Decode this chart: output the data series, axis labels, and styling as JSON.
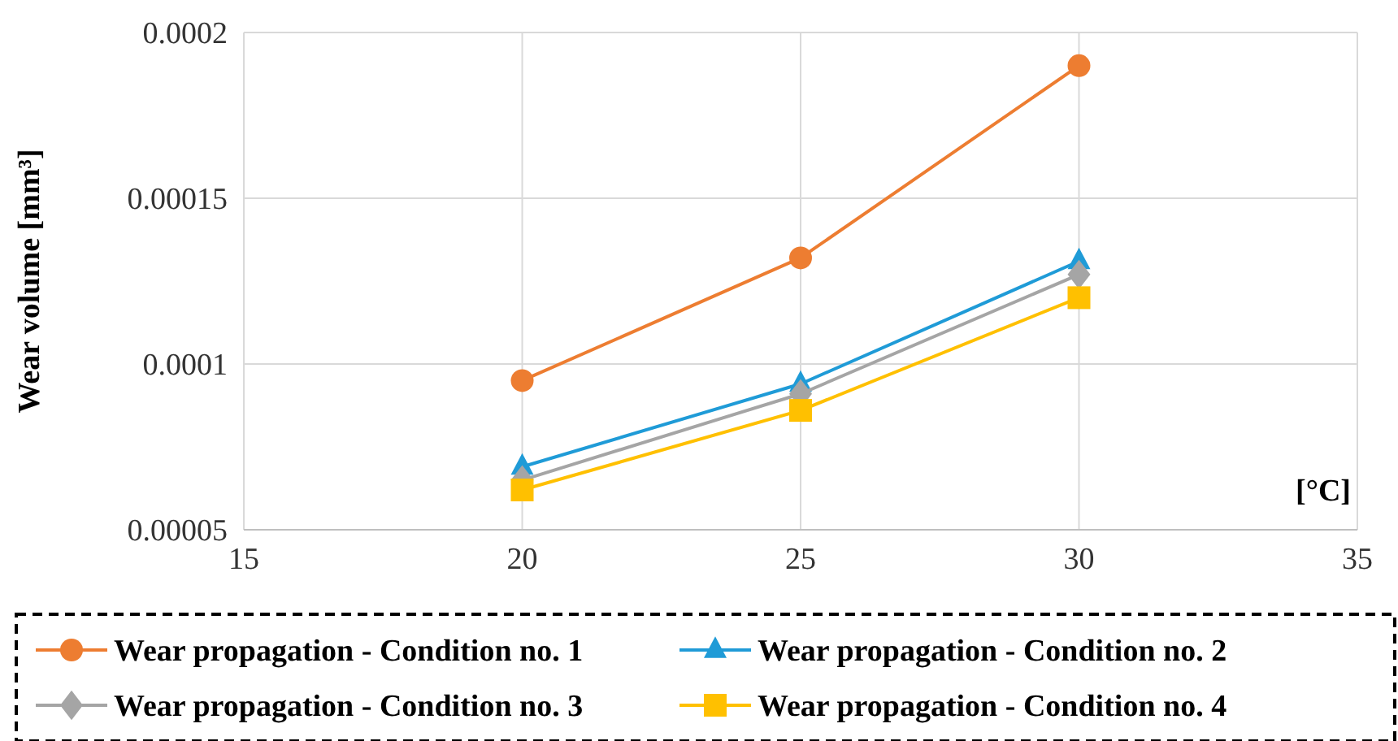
{
  "chart_data": {
    "type": "line",
    "ylabel": "Wear volume [mm³]",
    "xlabel": "[°C]",
    "x": [
      20,
      25,
      30
    ],
    "series": [
      {
        "name": "Wear propagation - Condition no. 1",
        "color": "#ed7d31",
        "marker": "circle",
        "values": [
          9.5e-05,
          0.000132,
          0.00019
        ]
      },
      {
        "name": "Wear propagation - Condition no. 2",
        "color": "#1f9bd7",
        "marker": "triangle",
        "values": [
          6.9e-05,
          9.4e-05,
          0.000131
        ]
      },
      {
        "name": "Wear propagation - Condition no. 3",
        "color": "#a5a5a5",
        "marker": "diamond",
        "values": [
          6.5e-05,
          9.1e-05,
          0.000127
        ]
      },
      {
        "name": "Wear propagation - Condition no. 4",
        "color": "#ffc000",
        "marker": "square",
        "values": [
          6.2e-05,
          8.6e-05,
          0.00012
        ]
      }
    ],
    "xlim": [
      15,
      35
    ],
    "xticks": [
      15,
      20,
      25,
      30,
      35
    ],
    "ylim": [
      5e-05,
      0.0002
    ],
    "yticks": [
      {
        "value": 5e-05,
        "label": "0.00005"
      },
      {
        "value": 0.0001,
        "label": "0.0001"
      },
      {
        "value": 0.00015,
        "label": "0.00015"
      },
      {
        "value": 0.0002,
        "label": "0.0002"
      }
    ],
    "grid": true,
    "legend": "bottom",
    "line_style": "solid"
  }
}
